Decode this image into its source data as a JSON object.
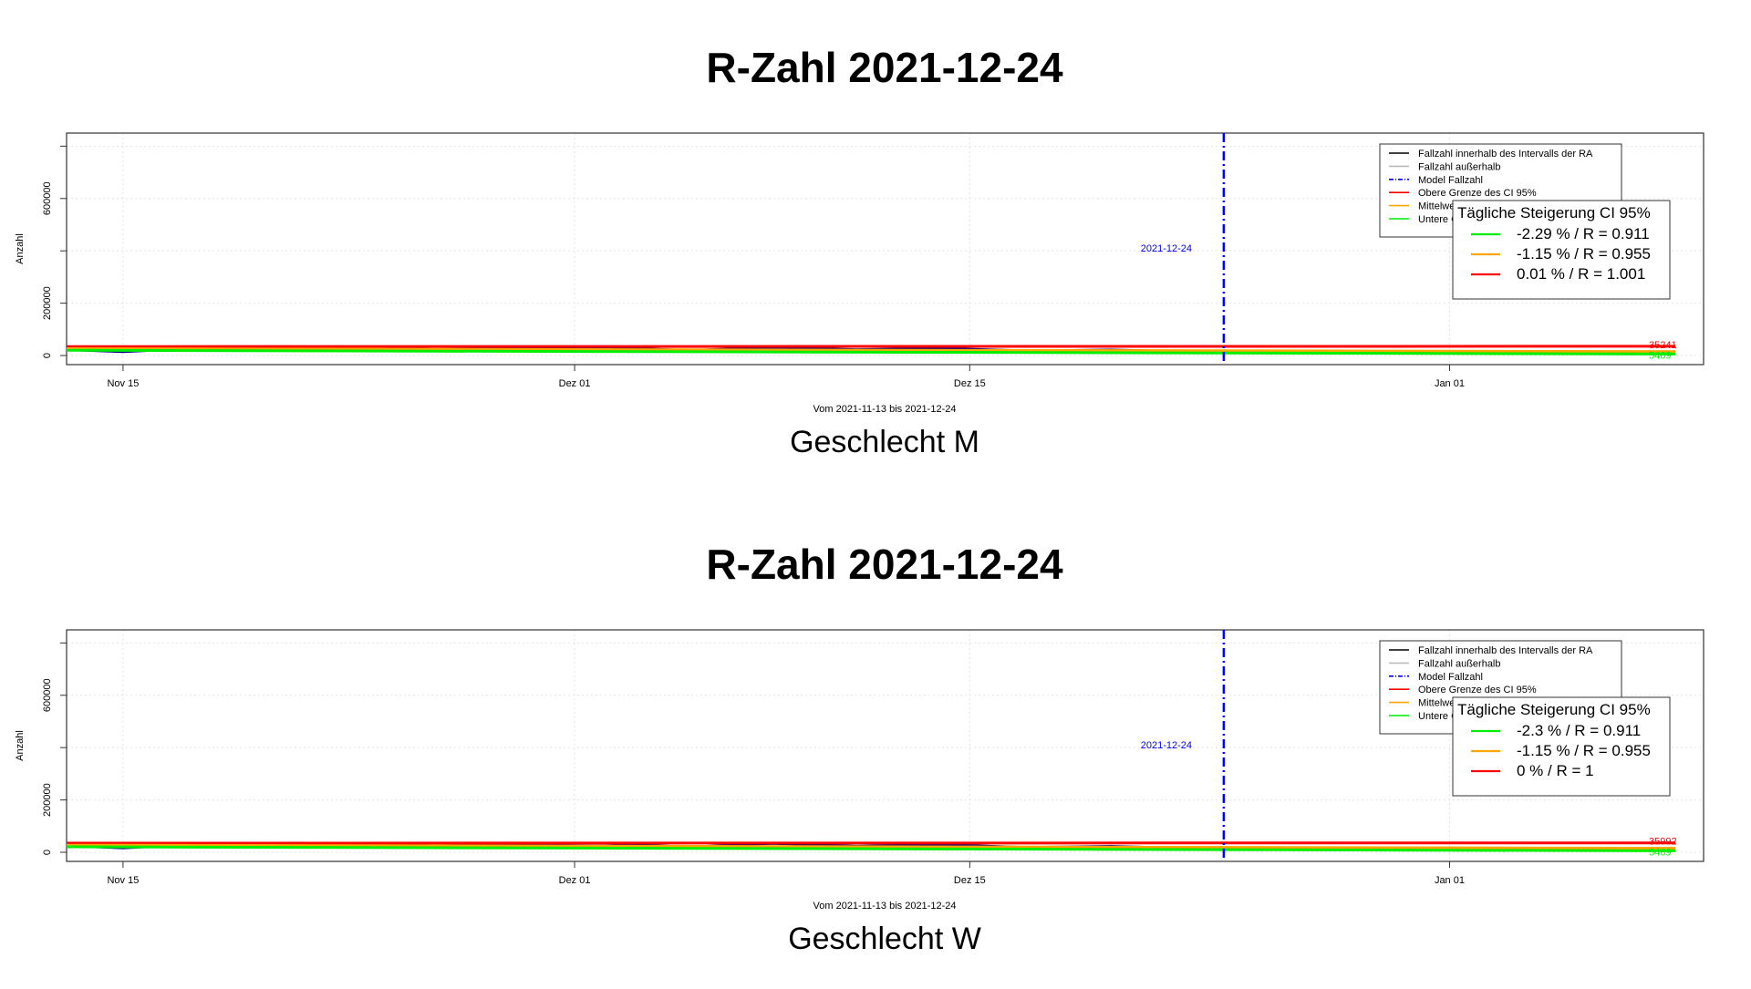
{
  "chart_data": [
    {
      "type": "line",
      "title": "R-Zahl 2021-12-24",
      "subtitle": "Geschlecht M",
      "xlabel": "Vom 2021-11-13 bis 2021-12-24",
      "ylabel": "Anzahl",
      "x_range": [
        "2021-11-13",
        "2022-01-10"
      ],
      "ylim": [
        0,
        850000
      ],
      "x_ticks": [
        {
          "date": "2021-11-15",
          "label": "Nov 15"
        },
        {
          "date": "2021-12-01",
          "label": "Dez 01"
        },
        {
          "date": "2021-12-15",
          "label": "Dez 15"
        },
        {
          "date": "2022-01-01",
          "label": "Jan 01"
        }
      ],
      "y_ticks": [
        0,
        200000,
        600000
      ],
      "grid": true,
      "vline": {
        "date": "2021-12-24",
        "label": "2021-12-24",
        "color": "#0000ff"
      },
      "legend": {
        "position": "top-right",
        "entries": [
          {
            "label": "Fallzahl innerhalb des Intervalls der RA",
            "color": "#000000",
            "dash": false
          },
          {
            "label": "Fallzahl außerhalb",
            "color": "#bbbbbb",
            "dash": false
          },
          {
            "label": "Model Fallzahl",
            "color": "#0000ff",
            "dash": true
          },
          {
            "label": "Obere Grenze des CI 95%",
            "color": "#ff0000",
            "dash": false
          },
          {
            "label": "Mittelwert",
            "color": "#ffa500",
            "dash": false
          },
          {
            "label": "Untere Grenze des CI 95%",
            "color": "#00ee00",
            "dash": false
          }
        ]
      },
      "growth_box": {
        "title": "Tägliche Steigerung CI  95%",
        "entries": [
          {
            "label": "-2.29 % / R = 0.911",
            "color": "#00ee00"
          },
          {
            "label": "-1.15 % / R = 0.955",
            "color": "#ffa500"
          },
          {
            "label": "0.01 % / R = 1.001",
            "color": "#ff0000"
          }
        ]
      },
      "series": [
        {
          "x": [
            "2021-11-13",
            "2021-11-15",
            "2021-11-17",
            "2021-11-20",
            "2021-11-23",
            "2021-11-26",
            "2021-11-29",
            "2021-12-02",
            "2021-12-05",
            "2021-12-08",
            "2021-12-11",
            "2021-12-14",
            "2021-12-17",
            "2021-12-20",
            "2021-12-22",
            "2021-12-24"
          ],
          "values": [
            22000,
            14000,
            24000,
            26000,
            17000,
            34000,
            29000,
            32000,
            20000,
            31000,
            23000,
            28000,
            18000,
            22000,
            17000,
            15000
          ],
          "color": "#000080"
        },
        {
          "x": [
            "2021-12-24",
            "2021-12-28",
            "2022-01-01",
            "2022-01-05",
            "2022-01-09"
          ],
          "values": [
            15000,
            13000,
            16000,
            11000,
            9000
          ],
          "color": "#0000ff"
        },
        {
          "x": [
            "2021-11-13",
            "2022-01-09"
          ],
          "values": [
            34000,
            35241
          ],
          "color": "#ff0000"
        },
        {
          "x": [
            "2021-11-13",
            "2022-01-09"
          ],
          "values": [
            26000,
            15000
          ],
          "color": "#ffa500"
        },
        {
          "x": [
            "2021-11-13",
            "2022-01-09"
          ],
          "values": [
            20000,
            5469
          ],
          "color": "#00ee00"
        }
      ],
      "end_labels": [
        {
          "text": "35241",
          "value": 35241,
          "color": "#ff0000"
        },
        {
          "text": "5469",
          "value": 5469,
          "color": "#00ee00"
        }
      ]
    },
    {
      "type": "line",
      "title": "R-Zahl 2021-12-24",
      "subtitle": "Geschlecht W",
      "xlabel": "Vom 2021-11-13 bis 2021-12-24",
      "ylabel": "Anzahl",
      "x_range": [
        "2021-11-13",
        "2022-01-10"
      ],
      "ylim": [
        0,
        850000
      ],
      "x_ticks": [
        {
          "date": "2021-11-15",
          "label": "Nov 15"
        },
        {
          "date": "2021-12-01",
          "label": "Dez 01"
        },
        {
          "date": "2021-12-15",
          "label": "Dez 15"
        },
        {
          "date": "2022-01-01",
          "label": "Jan 01"
        }
      ],
      "y_ticks": [
        0,
        200000,
        600000
      ],
      "grid": true,
      "vline": {
        "date": "2021-12-24",
        "label": "2021-12-24",
        "color": "#0000ff"
      },
      "legend": {
        "position": "top-right",
        "entries": [
          {
            "label": "Fallzahl innerhalb des Intervalls der RA",
            "color": "#000000",
            "dash": false
          },
          {
            "label": "Fallzahl außerhalb",
            "color": "#bbbbbb",
            "dash": false
          },
          {
            "label": "Model Fallzahl",
            "color": "#0000ff",
            "dash": true
          },
          {
            "label": "Obere Grenze des CI 95%",
            "color": "#ff0000",
            "dash": false
          },
          {
            "label": "Mittelwert",
            "color": "#ffa500",
            "dash": false
          },
          {
            "label": "Untere Grenze des CI 95%",
            "color": "#00ee00",
            "dash": false
          }
        ]
      },
      "growth_box": {
        "title": "Tägliche Steigerung CI  95%",
        "entries": [
          {
            "label": "-2.3 % / R = 0.911",
            "color": "#00ee00"
          },
          {
            "label": "-1.15 % / R = 0.955",
            "color": "#ffa500"
          },
          {
            "label": "0 % / R = 1",
            "color": "#ff0000"
          }
        ]
      },
      "series": [
        {
          "x": [
            "2021-11-13",
            "2021-11-15",
            "2021-11-17",
            "2021-11-20",
            "2021-11-23",
            "2021-11-26",
            "2021-11-29",
            "2021-12-02",
            "2021-12-05",
            "2021-12-08",
            "2021-12-11",
            "2021-12-14",
            "2021-12-17",
            "2021-12-20",
            "2021-12-22",
            "2021-12-24"
          ],
          "values": [
            24000,
            16000,
            26000,
            27000,
            18000,
            36000,
            30000,
            34000,
            21000,
            33000,
            24000,
            30000,
            19000,
            23000,
            18000,
            16000
          ],
          "color": "#000080"
        },
        {
          "x": [
            "2021-12-24",
            "2021-12-28",
            "2022-01-01",
            "2022-01-05",
            "2022-01-09"
          ],
          "values": [
            16000,
            14000,
            17000,
            12000,
            10000
          ],
          "color": "#0000ff"
        },
        {
          "x": [
            "2021-11-13",
            "2022-01-09"
          ],
          "values": [
            35000,
            35992
          ],
          "color": "#ff0000"
        },
        {
          "x": [
            "2021-11-13",
            "2022-01-09"
          ],
          "values": [
            27000,
            15500
          ],
          "color": "#ffa500"
        },
        {
          "x": [
            "2021-11-13",
            "2022-01-09"
          ],
          "values": [
            21000,
            5469
          ],
          "color": "#00ee00"
        }
      ],
      "end_labels": [
        {
          "text": "35992",
          "value": 35992,
          "color": "#ff0000"
        },
        {
          "text": "5469",
          "value": 5469,
          "color": "#00ee00"
        }
      ]
    }
  ]
}
